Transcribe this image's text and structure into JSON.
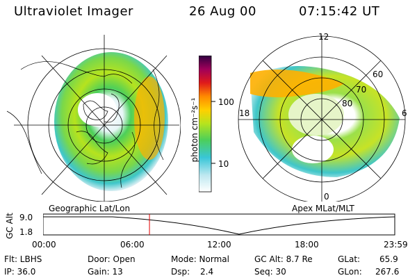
{
  "header": {
    "instrument": "Ultraviolet Imager",
    "date": "26 Aug 00",
    "time": "07:15:42 UT"
  },
  "left_panel": {
    "caption": "Geographic Lat/Lon"
  },
  "colorbar": {
    "unit_label": "photon cm⁻²s⁻¹",
    "ticks": [
      "100",
      "10"
    ]
  },
  "right_panel": {
    "caption": "Apex MLat/MLT",
    "mlt_labels": {
      "top": "12",
      "left": "18",
      "right": "6",
      "bottom": "0"
    },
    "lat_labels": [
      "60",
      "70",
      "80"
    ]
  },
  "altitude_plot": {
    "ylabel": "GC Alt",
    "yticks": [
      "9.0",
      "1.8"
    ],
    "xticks": [
      "00:00",
      "06:00",
      "12:00",
      "18:00",
      "23:59"
    ],
    "current_time_marker_hours": 7.26
  },
  "info": {
    "flt": "Flt: LBHS",
    "ip": "IP: 36.0",
    "door": "Door: Open",
    "gain": "Gain: 13",
    "mode": "Mode: Normal",
    "dsp_label": "Dsp:",
    "dsp_value": "2.4",
    "gc_alt": "GC Alt: 8.7 Re",
    "seq": "Seq: 30",
    "glat_label": "GLat:",
    "glat_value": "65.9",
    "glon_label": "GLon:",
    "glon_value": "267.6"
  },
  "colors": {
    "accent_red": "#e00000",
    "aurora_palette": [
      "#ffffff",
      "#bfe8f0",
      "#39c6d8",
      "#4ccf5a",
      "#b6e31e",
      "#ffd000",
      "#ff8a00",
      "#e01a1a",
      "#a0005a",
      "#300040"
    ]
  }
}
